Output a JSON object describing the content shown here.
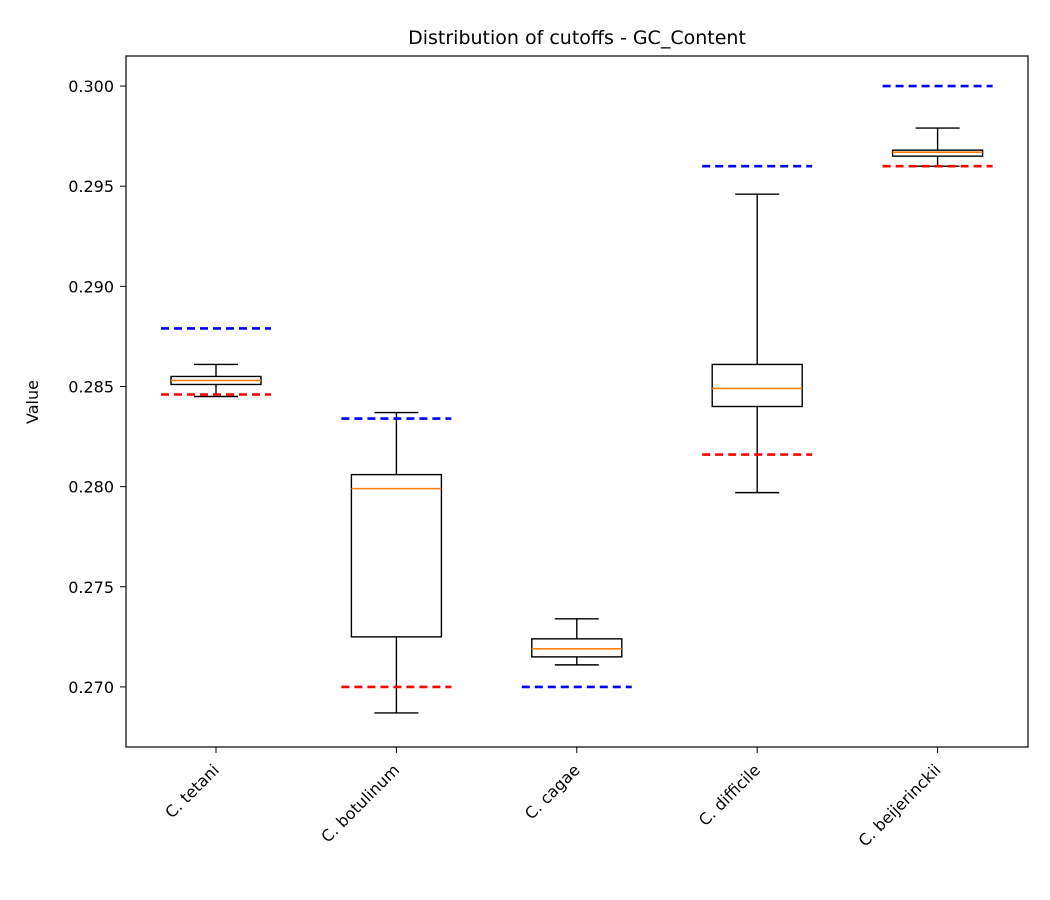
{
  "chart_data": {
    "type": "box",
    "title": "Distribution of cutoffs - GC_Content",
    "xlabel": "",
    "ylabel": "Value",
    "ylim": [
      0.267,
      0.3015
    ],
    "yticks": [
      "0.270",
      "0.275",
      "0.280",
      "0.285",
      "0.290",
      "0.295",
      "0.300"
    ],
    "ytick_values": [
      0.27,
      0.275,
      0.28,
      0.285,
      0.29,
      0.295,
      0.3
    ],
    "categories": [
      "C. tetani",
      "C. botulinum",
      "C. cagae",
      "C. difficile",
      "C. beijerinckii"
    ],
    "boxes": [
      {
        "whisker_low": 0.2845,
        "q1": 0.2851,
        "median": 0.2853,
        "q3": 0.2855,
        "whisker_high": 0.2861,
        "lower_cutoff": 0.2846,
        "upper_cutoff": 0.2879
      },
      {
        "whisker_low": 0.2687,
        "q1": 0.2725,
        "median": 0.2799,
        "q3": 0.2806,
        "whisker_high": 0.2837,
        "lower_cutoff": 0.27,
        "upper_cutoff": 0.2834
      },
      {
        "whisker_low": 0.2711,
        "q1": 0.2715,
        "median": 0.2719,
        "q3": 0.2724,
        "whisker_high": 0.2734,
        "lower_cutoff": null,
        "upper_cutoff": 0.27
      },
      {
        "whisker_low": 0.2797,
        "q1": 0.284,
        "median": 0.2849,
        "q3": 0.2861,
        "whisker_high": 0.2946,
        "lower_cutoff": 0.2816,
        "upper_cutoff": 0.296
      },
      {
        "whisker_low": 0.296,
        "q1": 0.2965,
        "median": 0.2967,
        "q3": 0.2968,
        "whisker_high": 0.2979,
        "lower_cutoff": 0.296,
        "upper_cutoff": 0.3
      }
    ],
    "colors": {
      "box": "#000000",
      "median": "#ff7f0e",
      "upper_cutoff": "#0000ff",
      "lower_cutoff": "#ff0000"
    },
    "grid": false,
    "legend": "none"
  }
}
